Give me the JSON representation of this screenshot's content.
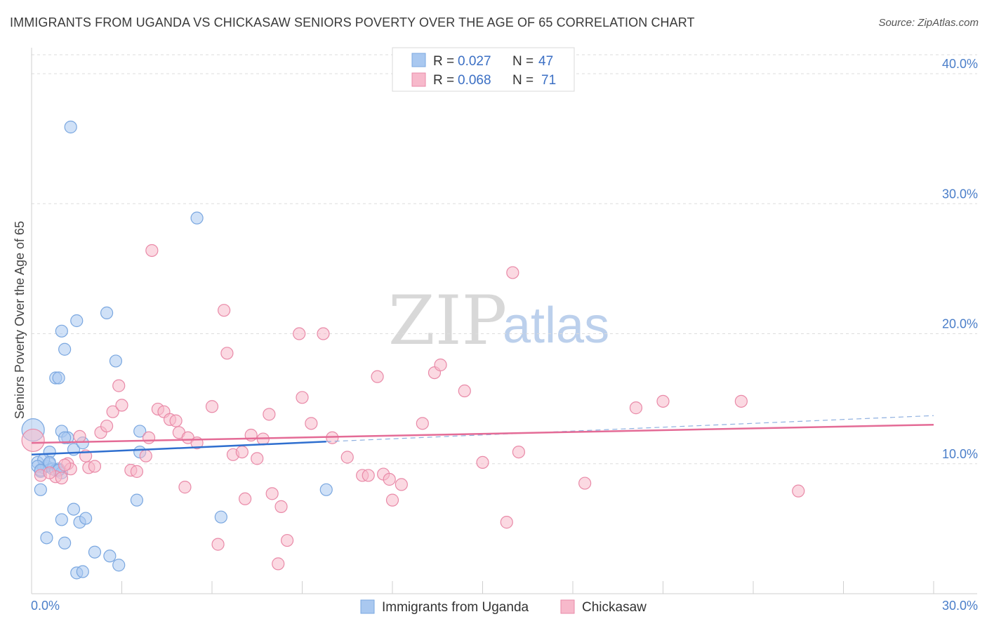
{
  "header": {
    "title": "IMMIGRANTS FROM UGANDA VS CHICKASAW SENIORS POVERTY OVER THE AGE OF 65 CORRELATION CHART",
    "source": "Source: ZipAtlas.com"
  },
  "watermark": {
    "zip": "ZIP",
    "atlas": "atlas"
  },
  "legend": {
    "rows": [
      {
        "r_label": "R = ",
        "r_value": "0.027",
        "n_label": "N = ",
        "n_value": "47",
        "color": "#a9c8f0"
      },
      {
        "r_label": "R = ",
        "r_value": "0.068",
        "n_label": "N = ",
        "n_value": "71",
        "color": "#f7b9cb"
      }
    ]
  },
  "chart_data": {
    "type": "scatter",
    "title": "IMMIGRANTS FROM UGANDA VS CHICKASAW SENIORS POVERTY OVER THE AGE OF 65 CORRELATION CHART",
    "xlabel": "",
    "ylabel": "Seniors Poverty Over the Age of 65",
    "xlim": [
      0,
      30
    ],
    "ylim": [
      0,
      42
    ],
    "x_ticks": [
      "0.0%",
      "30.0%"
    ],
    "y_ticks": [
      {
        "value": 10,
        "label": "10.0%"
      },
      {
        "value": 20,
        "label": "20.0%"
      },
      {
        "value": 30,
        "label": "30.0%"
      },
      {
        "value": 40,
        "label": "40.0%"
      }
    ],
    "grid": true,
    "series": [
      {
        "name": "Immigrants from Uganda",
        "color": "#7aa7e0",
        "fill": "#a9c8f0",
        "trend": {
          "x": [
            0,
            9.8
          ],
          "y": [
            10.7,
            11.7
          ],
          "color": "#2f6fcf"
        },
        "trend_ext": {
          "x": [
            9.8,
            30
          ],
          "y": [
            11.7,
            13.7
          ]
        },
        "points": [
          [
            0.05,
            12.6
          ],
          [
            0.2,
            10.1
          ],
          [
            0.3,
            9.4
          ],
          [
            0.4,
            9.7
          ],
          [
            0.5,
            9.8
          ],
          [
            0.6,
            10.0
          ],
          [
            0.7,
            9.6
          ],
          [
            0.8,
            9.5
          ],
          [
            0.9,
            9.6
          ],
          [
            0.3,
            8.0
          ],
          [
            0.6,
            10.9
          ],
          [
            1.0,
            9.3
          ],
          [
            1.3,
            35.9
          ],
          [
            1.5,
            21.0
          ],
          [
            1.0,
            20.2
          ],
          [
            1.1,
            18.8
          ],
          [
            0.8,
            16.6
          ],
          [
            0.9,
            16.6
          ],
          [
            2.5,
            21.6
          ],
          [
            2.8,
            17.9
          ],
          [
            1.0,
            12.5
          ],
          [
            1.2,
            12.0
          ],
          [
            1.4,
            11.1
          ],
          [
            1.7,
            11.6
          ],
          [
            3.6,
            12.5
          ],
          [
            3.6,
            10.9
          ],
          [
            5.5,
            28.9
          ],
          [
            3.5,
            7.2
          ],
          [
            1.4,
            6.5
          ],
          [
            1.0,
            5.7
          ],
          [
            1.6,
            5.5
          ],
          [
            1.8,
            5.8
          ],
          [
            0.5,
            4.3
          ],
          [
            1.1,
            3.9
          ],
          [
            2.1,
            3.2
          ],
          [
            2.6,
            2.9
          ],
          [
            2.9,
            2.2
          ],
          [
            1.5,
            1.6
          ],
          [
            1.7,
            1.7
          ],
          [
            6.3,
            5.9
          ],
          [
            9.8,
            8.0
          ],
          [
            0.4,
            10.3
          ],
          [
            0.6,
            10.1
          ],
          [
            0.9,
            9.5
          ],
          [
            1.1,
            12.0
          ],
          [
            0.2,
            9.8
          ],
          [
            0.3,
            9.5
          ]
        ]
      },
      {
        "name": "Chickasaw",
        "color": "#e98aa8",
        "fill": "#f7b9cb",
        "trend": {
          "x": [
            0,
            30
          ],
          "y": [
            11.6,
            13.0
          ],
          "color": "#e46b96"
        },
        "points": [
          [
            0.05,
            11.8
          ],
          [
            0.3,
            9.1
          ],
          [
            0.8,
            9.0
          ],
          [
            1.0,
            8.9
          ],
          [
            1.2,
            10.0
          ],
          [
            1.3,
            9.6
          ],
          [
            1.6,
            12.1
          ],
          [
            1.8,
            10.6
          ],
          [
            1.9,
            9.7
          ],
          [
            2.1,
            9.8
          ],
          [
            2.3,
            12.4
          ],
          [
            2.5,
            12.9
          ],
          [
            2.7,
            14.0
          ],
          [
            2.9,
            16.0
          ],
          [
            3.0,
            14.5
          ],
          [
            3.3,
            9.5
          ],
          [
            3.5,
            9.4
          ],
          [
            3.9,
            12.0
          ],
          [
            4.0,
            26.4
          ],
          [
            4.2,
            14.2
          ],
          [
            4.4,
            14.0
          ],
          [
            4.6,
            13.4
          ],
          [
            4.8,
            13.3
          ],
          [
            4.9,
            12.4
          ],
          [
            5.1,
            8.2
          ],
          [
            5.2,
            12.0
          ],
          [
            5.5,
            11.6
          ],
          [
            6.0,
            14.4
          ],
          [
            6.2,
            3.8
          ],
          [
            6.4,
            21.8
          ],
          [
            6.5,
            18.5
          ],
          [
            6.7,
            10.7
          ],
          [
            7.0,
            10.9
          ],
          [
            7.1,
            7.3
          ],
          [
            7.3,
            12.2
          ],
          [
            7.5,
            10.4
          ],
          [
            7.7,
            11.9
          ],
          [
            7.9,
            13.8
          ],
          [
            8.0,
            7.7
          ],
          [
            8.2,
            2.3
          ],
          [
            8.3,
            6.7
          ],
          [
            8.5,
            4.1
          ],
          [
            8.9,
            20.0
          ],
          [
            9.0,
            15.1
          ],
          [
            9.3,
            13.1
          ],
          [
            9.7,
            20.0
          ],
          [
            10.0,
            12.0
          ],
          [
            10.5,
            10.5
          ],
          [
            11.0,
            9.1
          ],
          [
            11.2,
            9.1
          ],
          [
            11.5,
            16.7
          ],
          [
            11.7,
            9.2
          ],
          [
            11.9,
            8.8
          ],
          [
            12.0,
            7.2
          ],
          [
            12.3,
            8.4
          ],
          [
            13.0,
            13.1
          ],
          [
            13.4,
            17.0
          ],
          [
            13.6,
            17.6
          ],
          [
            14.4,
            15.6
          ],
          [
            15.0,
            10.1
          ],
          [
            15.8,
            5.5
          ],
          [
            16.0,
            24.7
          ],
          [
            16.2,
            10.9
          ],
          [
            18.4,
            8.5
          ],
          [
            20.1,
            14.3
          ],
          [
            21.0,
            14.8
          ],
          [
            23.6,
            14.8
          ],
          [
            25.5,
            7.9
          ],
          [
            1.1,
            9.9
          ],
          [
            3.8,
            10.6
          ],
          [
            0.6,
            9.3
          ]
        ]
      }
    ]
  },
  "bottom_legend": [
    "Immigrants from Uganda",
    "Chickasaw"
  ]
}
